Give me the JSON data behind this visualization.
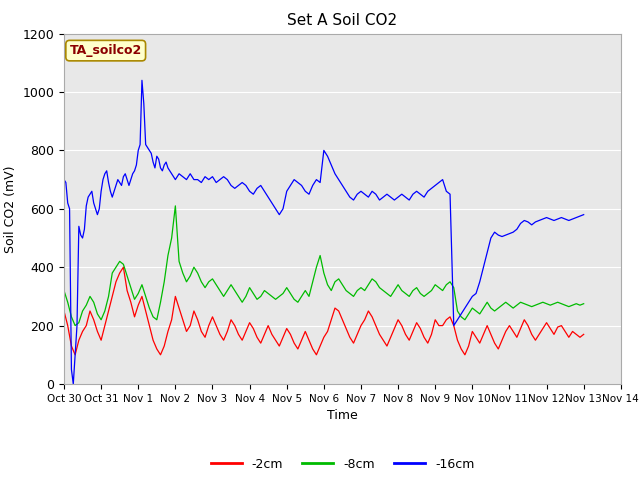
{
  "title": "Set A Soil CO2",
  "ylabel": "Soil CO2 (mV)",
  "xlabel": "Time",
  "ylim": [
    0,
    1200
  ],
  "bg_color": "#e8e8e8",
  "fig_color": "#ffffff",
  "legend_label": "TA_soilco2",
  "series_labels": [
    "-2cm",
    "-8cm",
    "-16cm"
  ],
  "series_colors": [
    "#ff0000",
    "#00bb00",
    "#0000ff"
  ],
  "x_tick_labels": [
    "Oct 30",
    "Oct 31",
    "Nov 1",
    "Nov 2",
    "Nov 3",
    "Nov 4",
    "Nov 5",
    "Nov 6",
    "Nov 7",
    "Nov 8",
    "Nov 9",
    "Nov 10",
    "Nov 11",
    "Nov 12",
    "Nov 13",
    "Nov 14"
  ],
  "x_tick_positions": [
    0,
    1,
    2,
    3,
    4,
    5,
    6,
    7,
    8,
    9,
    10,
    11,
    12,
    13,
    14,
    15
  ],
  "yticks": [
    0,
    200,
    400,
    600,
    800,
    1000,
    1200
  ],
  "red_data": [
    [
      0.0,
      250
    ],
    [
      0.1,
      200
    ],
    [
      0.2,
      130
    ],
    [
      0.3,
      100
    ],
    [
      0.4,
      150
    ],
    [
      0.5,
      180
    ],
    [
      0.6,
      200
    ],
    [
      0.7,
      250
    ],
    [
      0.8,
      220
    ],
    [
      0.9,
      180
    ],
    [
      1.0,
      150
    ],
    [
      1.1,
      200
    ],
    [
      1.2,
      250
    ],
    [
      1.3,
      300
    ],
    [
      1.4,
      350
    ],
    [
      1.5,
      380
    ],
    [
      1.6,
      400
    ],
    [
      1.7,
      320
    ],
    [
      1.8,
      280
    ],
    [
      1.9,
      230
    ],
    [
      2.0,
      270
    ],
    [
      2.1,
      300
    ],
    [
      2.2,
      250
    ],
    [
      2.3,
      200
    ],
    [
      2.4,
      150
    ],
    [
      2.5,
      120
    ],
    [
      2.6,
      100
    ],
    [
      2.7,
      130
    ],
    [
      2.8,
      180
    ],
    [
      2.9,
      220
    ],
    [
      3.0,
      300
    ],
    [
      3.1,
      260
    ],
    [
      3.2,
      220
    ],
    [
      3.3,
      180
    ],
    [
      3.4,
      200
    ],
    [
      3.5,
      250
    ],
    [
      3.6,
      220
    ],
    [
      3.7,
      180
    ],
    [
      3.8,
      160
    ],
    [
      3.9,
      200
    ],
    [
      4.0,
      230
    ],
    [
      4.1,
      200
    ],
    [
      4.2,
      170
    ],
    [
      4.3,
      150
    ],
    [
      4.4,
      180
    ],
    [
      4.5,
      220
    ],
    [
      4.6,
      200
    ],
    [
      4.7,
      170
    ],
    [
      4.8,
      150
    ],
    [
      4.9,
      180
    ],
    [
      5.0,
      210
    ],
    [
      5.1,
      190
    ],
    [
      5.2,
      160
    ],
    [
      5.3,
      140
    ],
    [
      5.4,
      170
    ],
    [
      5.5,
      200
    ],
    [
      5.6,
      170
    ],
    [
      5.7,
      150
    ],
    [
      5.8,
      130
    ],
    [
      5.9,
      160
    ],
    [
      6.0,
      190
    ],
    [
      6.1,
      170
    ],
    [
      6.2,
      140
    ],
    [
      6.3,
      120
    ],
    [
      6.4,
      150
    ],
    [
      6.5,
      180
    ],
    [
      6.6,
      150
    ],
    [
      6.7,
      120
    ],
    [
      6.8,
      100
    ],
    [
      6.9,
      130
    ],
    [
      7.0,
      160
    ],
    [
      7.1,
      180
    ],
    [
      7.2,
      220
    ],
    [
      7.3,
      260
    ],
    [
      7.4,
      250
    ],
    [
      7.5,
      220
    ],
    [
      7.6,
      190
    ],
    [
      7.7,
      160
    ],
    [
      7.8,
      140
    ],
    [
      7.9,
      170
    ],
    [
      8.0,
      200
    ],
    [
      8.1,
      220
    ],
    [
      8.2,
      250
    ],
    [
      8.3,
      230
    ],
    [
      8.4,
      200
    ],
    [
      8.5,
      170
    ],
    [
      8.6,
      150
    ],
    [
      8.7,
      130
    ],
    [
      8.8,
      160
    ],
    [
      8.9,
      190
    ],
    [
      9.0,
      220
    ],
    [
      9.1,
      200
    ],
    [
      9.2,
      170
    ],
    [
      9.3,
      150
    ],
    [
      9.4,
      180
    ],
    [
      9.5,
      210
    ],
    [
      9.6,
      190
    ],
    [
      9.7,
      160
    ],
    [
      9.8,
      140
    ],
    [
      9.9,
      170
    ],
    [
      10.0,
      220
    ],
    [
      10.1,
      200
    ],
    [
      10.2,
      200
    ],
    [
      10.3,
      220
    ],
    [
      10.4,
      230
    ],
    [
      10.5,
      200
    ],
    [
      10.6,
      150
    ],
    [
      10.7,
      120
    ],
    [
      10.8,
      100
    ],
    [
      10.9,
      130
    ],
    [
      11.0,
      180
    ],
    [
      11.1,
      160
    ],
    [
      11.2,
      140
    ],
    [
      11.3,
      170
    ],
    [
      11.4,
      200
    ],
    [
      11.5,
      170
    ],
    [
      11.6,
      140
    ],
    [
      11.7,
      120
    ],
    [
      11.8,
      150
    ],
    [
      11.9,
      180
    ],
    [
      12.0,
      200
    ],
    [
      12.1,
      180
    ],
    [
      12.2,
      160
    ],
    [
      12.3,
      190
    ],
    [
      12.4,
      220
    ],
    [
      12.5,
      200
    ],
    [
      12.6,
      170
    ],
    [
      12.7,
      150
    ],
    [
      12.8,
      170
    ],
    [
      12.9,
      190
    ],
    [
      13.0,
      210
    ],
    [
      13.1,
      190
    ],
    [
      13.2,
      170
    ],
    [
      13.3,
      195
    ],
    [
      13.4,
      200
    ],
    [
      13.5,
      180
    ],
    [
      13.6,
      160
    ],
    [
      13.7,
      180
    ],
    [
      13.8,
      170
    ],
    [
      13.9,
      160
    ],
    [
      14.0,
      170
    ]
  ],
  "green_data": [
    [
      0.0,
      320
    ],
    [
      0.1,
      280
    ],
    [
      0.2,
      230
    ],
    [
      0.3,
      200
    ],
    [
      0.4,
      210
    ],
    [
      0.5,
      250
    ],
    [
      0.6,
      270
    ],
    [
      0.7,
      300
    ],
    [
      0.8,
      280
    ],
    [
      0.9,
      240
    ],
    [
      1.0,
      220
    ],
    [
      1.1,
      250
    ],
    [
      1.2,
      300
    ],
    [
      1.3,
      380
    ],
    [
      1.4,
      400
    ],
    [
      1.5,
      420
    ],
    [
      1.6,
      410
    ],
    [
      1.7,
      370
    ],
    [
      1.8,
      330
    ],
    [
      1.9,
      290
    ],
    [
      2.0,
      310
    ],
    [
      2.1,
      340
    ],
    [
      2.2,
      300
    ],
    [
      2.3,
      260
    ],
    [
      2.4,
      230
    ],
    [
      2.5,
      220
    ],
    [
      2.6,
      280
    ],
    [
      2.7,
      350
    ],
    [
      2.8,
      440
    ],
    [
      2.9,
      500
    ],
    [
      3.0,
      610
    ],
    [
      3.1,
      420
    ],
    [
      3.2,
      380
    ],
    [
      3.3,
      350
    ],
    [
      3.4,
      370
    ],
    [
      3.5,
      400
    ],
    [
      3.6,
      380
    ],
    [
      3.7,
      350
    ],
    [
      3.8,
      330
    ],
    [
      3.9,
      350
    ],
    [
      4.0,
      360
    ],
    [
      4.1,
      340
    ],
    [
      4.2,
      320
    ],
    [
      4.3,
      300
    ],
    [
      4.4,
      320
    ],
    [
      4.5,
      340
    ],
    [
      4.6,
      320
    ],
    [
      4.7,
      300
    ],
    [
      4.8,
      280
    ],
    [
      4.9,
      300
    ],
    [
      5.0,
      330
    ],
    [
      5.1,
      310
    ],
    [
      5.2,
      290
    ],
    [
      5.3,
      300
    ],
    [
      5.4,
      320
    ],
    [
      5.5,
      310
    ],
    [
      5.6,
      300
    ],
    [
      5.7,
      290
    ],
    [
      5.8,
      300
    ],
    [
      5.9,
      310
    ],
    [
      6.0,
      330
    ],
    [
      6.1,
      310
    ],
    [
      6.2,
      290
    ],
    [
      6.3,
      280
    ],
    [
      6.4,
      300
    ],
    [
      6.5,
      320
    ],
    [
      6.6,
      300
    ],
    [
      6.7,
      350
    ],
    [
      6.8,
      400
    ],
    [
      6.9,
      440
    ],
    [
      7.0,
      380
    ],
    [
      7.1,
      340
    ],
    [
      7.2,
      320
    ],
    [
      7.3,
      350
    ],
    [
      7.4,
      360
    ],
    [
      7.5,
      340
    ],
    [
      7.6,
      320
    ],
    [
      7.7,
      310
    ],
    [
      7.8,
      300
    ],
    [
      7.9,
      320
    ],
    [
      8.0,
      330
    ],
    [
      8.1,
      320
    ],
    [
      8.2,
      340
    ],
    [
      8.3,
      360
    ],
    [
      8.4,
      350
    ],
    [
      8.5,
      330
    ],
    [
      8.6,
      320
    ],
    [
      8.7,
      310
    ],
    [
      8.8,
      300
    ],
    [
      8.9,
      320
    ],
    [
      9.0,
      340
    ],
    [
      9.1,
      320
    ],
    [
      9.2,
      310
    ],
    [
      9.3,
      300
    ],
    [
      9.4,
      320
    ],
    [
      9.5,
      330
    ],
    [
      9.6,
      310
    ],
    [
      9.7,
      300
    ],
    [
      9.8,
      310
    ],
    [
      9.9,
      320
    ],
    [
      10.0,
      340
    ],
    [
      10.1,
      330
    ],
    [
      10.2,
      320
    ],
    [
      10.3,
      340
    ],
    [
      10.4,
      350
    ],
    [
      10.5,
      330
    ],
    [
      10.6,
      250
    ],
    [
      10.7,
      230
    ],
    [
      10.8,
      220
    ],
    [
      10.9,
      240
    ],
    [
      11.0,
      260
    ],
    [
      11.1,
      250
    ],
    [
      11.2,
      240
    ],
    [
      11.3,
      260
    ],
    [
      11.4,
      280
    ],
    [
      11.5,
      260
    ],
    [
      11.6,
      250
    ],
    [
      11.7,
      260
    ],
    [
      11.8,
      270
    ],
    [
      11.9,
      280
    ],
    [
      12.0,
      270
    ],
    [
      12.1,
      260
    ],
    [
      12.2,
      270
    ],
    [
      12.3,
      280
    ],
    [
      12.4,
      275
    ],
    [
      12.5,
      270
    ],
    [
      12.6,
      265
    ],
    [
      12.7,
      270
    ],
    [
      12.8,
      275
    ],
    [
      12.9,
      280
    ],
    [
      13.0,
      275
    ],
    [
      13.1,
      270
    ],
    [
      13.2,
      275
    ],
    [
      13.3,
      280
    ],
    [
      13.4,
      275
    ],
    [
      13.5,
      270
    ],
    [
      13.6,
      265
    ],
    [
      13.7,
      270
    ],
    [
      13.8,
      275
    ],
    [
      13.9,
      270
    ],
    [
      14.0,
      275
    ]
  ],
  "blue_data": [
    [
      0.0,
      700
    ],
    [
      0.05,
      690
    ],
    [
      0.1,
      620
    ],
    [
      0.15,
      600
    ],
    [
      0.2,
      50
    ],
    [
      0.25,
      0
    ],
    [
      0.3,
      100
    ],
    [
      0.35,
      200
    ],
    [
      0.4,
      540
    ],
    [
      0.45,
      510
    ],
    [
      0.5,
      500
    ],
    [
      0.55,
      530
    ],
    [
      0.6,
      610
    ],
    [
      0.65,
      640
    ],
    [
      0.7,
      650
    ],
    [
      0.75,
      660
    ],
    [
      0.8,
      620
    ],
    [
      0.85,
      600
    ],
    [
      0.9,
      580
    ],
    [
      0.95,
      600
    ],
    [
      1.0,
      660
    ],
    [
      1.05,
      700
    ],
    [
      1.1,
      720
    ],
    [
      1.15,
      730
    ],
    [
      1.2,
      690
    ],
    [
      1.25,
      660
    ],
    [
      1.3,
      640
    ],
    [
      1.35,
      660
    ],
    [
      1.4,
      680
    ],
    [
      1.45,
      700
    ],
    [
      1.5,
      690
    ],
    [
      1.55,
      680
    ],
    [
      1.6,
      710
    ],
    [
      1.65,
      720
    ],
    [
      1.7,
      700
    ],
    [
      1.75,
      680
    ],
    [
      1.8,
      700
    ],
    [
      1.85,
      720
    ],
    [
      1.9,
      730
    ],
    [
      1.95,
      750
    ],
    [
      2.0,
      800
    ],
    [
      2.05,
      820
    ],
    [
      2.1,
      1040
    ],
    [
      2.15,
      960
    ],
    [
      2.2,
      820
    ],
    [
      2.25,
      810
    ],
    [
      2.3,
      800
    ],
    [
      2.35,
      790
    ],
    [
      2.4,
      760
    ],
    [
      2.45,
      740
    ],
    [
      2.5,
      780
    ],
    [
      2.55,
      770
    ],
    [
      2.6,
      740
    ],
    [
      2.65,
      730
    ],
    [
      2.7,
      750
    ],
    [
      2.75,
      760
    ],
    [
      2.8,
      740
    ],
    [
      2.85,
      730
    ],
    [
      2.9,
      720
    ],
    [
      2.95,
      710
    ],
    [
      3.0,
      700
    ],
    [
      3.1,
      720
    ],
    [
      3.2,
      710
    ],
    [
      3.3,
      700
    ],
    [
      3.4,
      720
    ],
    [
      3.5,
      700
    ],
    [
      3.6,
      700
    ],
    [
      3.7,
      690
    ],
    [
      3.8,
      710
    ],
    [
      3.9,
      700
    ],
    [
      4.0,
      710
    ],
    [
      4.1,
      690
    ],
    [
      4.2,
      700
    ],
    [
      4.3,
      710
    ],
    [
      4.4,
      700
    ],
    [
      4.5,
      680
    ],
    [
      4.6,
      670
    ],
    [
      4.7,
      680
    ],
    [
      4.8,
      690
    ],
    [
      4.9,
      680
    ],
    [
      5.0,
      660
    ],
    [
      5.1,
      650
    ],
    [
      5.2,
      670
    ],
    [
      5.3,
      680
    ],
    [
      5.4,
      660
    ],
    [
      5.5,
      640
    ],
    [
      5.6,
      620
    ],
    [
      5.7,
      600
    ],
    [
      5.8,
      580
    ],
    [
      5.9,
      600
    ],
    [
      6.0,
      660
    ],
    [
      6.1,
      680
    ],
    [
      6.2,
      700
    ],
    [
      6.3,
      690
    ],
    [
      6.4,
      680
    ],
    [
      6.5,
      660
    ],
    [
      6.6,
      650
    ],
    [
      6.7,
      680
    ],
    [
      6.8,
      700
    ],
    [
      6.9,
      690
    ],
    [
      7.0,
      800
    ],
    [
      7.1,
      780
    ],
    [
      7.2,
      750
    ],
    [
      7.3,
      720
    ],
    [
      7.4,
      700
    ],
    [
      7.5,
      680
    ],
    [
      7.6,
      660
    ],
    [
      7.7,
      640
    ],
    [
      7.8,
      630
    ],
    [
      7.9,
      650
    ],
    [
      8.0,
      660
    ],
    [
      8.1,
      650
    ],
    [
      8.2,
      640
    ],
    [
      8.3,
      660
    ],
    [
      8.4,
      650
    ],
    [
      8.5,
      630
    ],
    [
      8.6,
      640
    ],
    [
      8.7,
      650
    ],
    [
      8.8,
      640
    ],
    [
      8.9,
      630
    ],
    [
      9.0,
      640
    ],
    [
      9.1,
      650
    ],
    [
      9.2,
      640
    ],
    [
      9.3,
      630
    ],
    [
      9.4,
      650
    ],
    [
      9.5,
      660
    ],
    [
      9.6,
      650
    ],
    [
      9.7,
      640
    ],
    [
      9.8,
      660
    ],
    [
      9.9,
      670
    ],
    [
      10.0,
      680
    ],
    [
      10.1,
      690
    ],
    [
      10.2,
      700
    ],
    [
      10.3,
      660
    ],
    [
      10.4,
      650
    ],
    [
      10.5,
      200
    ],
    [
      10.6,
      220
    ],
    [
      10.7,
      240
    ],
    [
      10.8,
      260
    ],
    [
      10.9,
      280
    ],
    [
      11.0,
      300
    ],
    [
      11.1,
      310
    ],
    [
      11.2,
      350
    ],
    [
      11.3,
      400
    ],
    [
      11.4,
      450
    ],
    [
      11.5,
      500
    ],
    [
      11.6,
      520
    ],
    [
      11.7,
      510
    ],
    [
      11.8,
      505
    ],
    [
      11.9,
      510
    ],
    [
      12.0,
      515
    ],
    [
      12.1,
      520
    ],
    [
      12.2,
      530
    ],
    [
      12.3,
      550
    ],
    [
      12.4,
      560
    ],
    [
      12.5,
      555
    ],
    [
      12.6,
      545
    ],
    [
      12.7,
      555
    ],
    [
      12.8,
      560
    ],
    [
      12.9,
      565
    ],
    [
      13.0,
      570
    ],
    [
      13.1,
      565
    ],
    [
      13.2,
      560
    ],
    [
      13.3,
      565
    ],
    [
      13.4,
      570
    ],
    [
      13.5,
      565
    ],
    [
      13.6,
      560
    ],
    [
      13.7,
      565
    ],
    [
      13.8,
      570
    ],
    [
      13.9,
      575
    ],
    [
      14.0,
      580
    ]
  ]
}
